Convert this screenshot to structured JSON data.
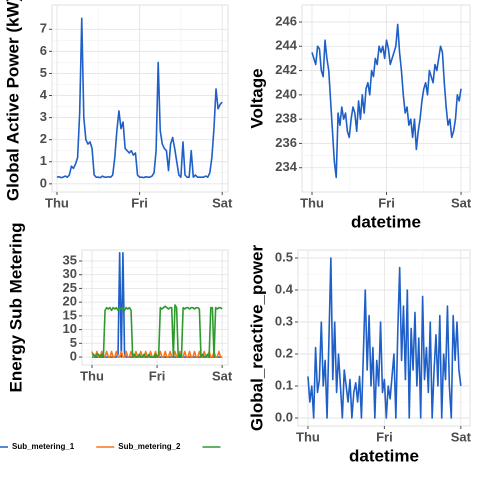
{
  "chart_data": [
    {
      "type": "line",
      "ylabel": "Global Active Power (kW)",
      "color": "#1f5fc8",
      "grid": true,
      "xlim": [
        -0.06,
        2.07
      ],
      "ylim": [
        -0.37,
        8.1
      ],
      "xticks": [
        {
          "value": 0,
          "label": "Thu"
        },
        {
          "value": 1,
          "label": "Fri"
        },
        {
          "value": 2,
          "label": "Sat"
        }
      ],
      "yticks": [
        0,
        1,
        2,
        3,
        4,
        5,
        6,
        7
      ],
      "x": [
        0,
        0.025,
        0.05,
        0.075,
        0.1,
        0.125,
        0.15,
        0.175,
        0.2,
        0.225,
        0.25,
        0.275,
        0.3,
        0.325,
        0.35,
        0.375,
        0.4,
        0.425,
        0.45,
        0.475,
        0.5,
        0.525,
        0.55,
        0.575,
        0.6,
        0.625,
        0.65,
        0.675,
        0.7,
        0.725,
        0.75,
        0.775,
        0.8,
        0.825,
        0.85,
        0.875,
        0.9,
        0.925,
        0.95,
        0.975,
        1,
        1.025,
        1.05,
        1.075,
        1.1,
        1.125,
        1.15,
        1.175,
        1.2,
        1.225,
        1.25,
        1.275,
        1.3,
        1.325,
        1.35,
        1.375,
        1.4,
        1.425,
        1.45,
        1.475,
        1.5,
        1.525,
        1.55,
        1.575,
        1.6,
        1.625,
        1.65,
        1.675,
        1.7,
        1.725,
        1.75,
        1.775,
        1.8,
        1.825,
        1.85,
        1.875,
        1.9,
        1.925,
        1.95,
        1.975,
        2
      ],
      "values": [
        0.3,
        0.32,
        0.28,
        0.3,
        0.35,
        0.3,
        0.4,
        0.8,
        0.7,
        0.9,
        1.2,
        3.2,
        7.5,
        3.0,
        2.0,
        1.8,
        1.9,
        1.6,
        0.4,
        0.3,
        0.3,
        0.28,
        0.35,
        0.3,
        0.3,
        0.32,
        0.3,
        0.4,
        1.2,
        2.4,
        3.3,
        2.5,
        2.8,
        1.6,
        1.5,
        1.4,
        1.5,
        1.3,
        1.4,
        0.4,
        0.3,
        0.3,
        0.28,
        0.32,
        0.3,
        0.3,
        0.35,
        0.5,
        1.5,
        5.5,
        2.4,
        1.8,
        1.6,
        1.5,
        0.6,
        1.8,
        2.1,
        1.6,
        1.0,
        0.4,
        0.3,
        1.9,
        0.4,
        0.3,
        0.3,
        1.5,
        0.3,
        0.4,
        0.3,
        0.3,
        0.3,
        0.3,
        0.35,
        0.3,
        0.5,
        1.2,
        2.5,
        4.3,
        3.4,
        3.6,
        3.7
      ]
    },
    {
      "type": "line",
      "xlabel": "datetime",
      "ylabel": "Voltage",
      "color": "#1f5fc8",
      "grid": true,
      "xlim": [
        -0.134,
        2.12
      ],
      "ylim": [
        232.0,
        247.4
      ],
      "xticks": [
        {
          "value": 0,
          "label": "Thu"
        },
        {
          "value": 1,
          "label": "Fri"
        },
        {
          "value": 2,
          "label": "Sat"
        }
      ],
      "yticks": [
        234,
        236,
        238,
        240,
        242,
        244,
        246
      ],
      "x": [
        0,
        0.025,
        0.05,
        0.075,
        0.1,
        0.125,
        0.15,
        0.175,
        0.2,
        0.225,
        0.25,
        0.275,
        0.3,
        0.325,
        0.35,
        0.375,
        0.4,
        0.425,
        0.45,
        0.475,
        0.5,
        0.525,
        0.55,
        0.575,
        0.6,
        0.625,
        0.65,
        0.675,
        0.7,
        0.725,
        0.75,
        0.775,
        0.8,
        0.825,
        0.85,
        0.875,
        0.9,
        0.925,
        0.95,
        0.975,
        1,
        1.025,
        1.05,
        1.075,
        1.1,
        1.125,
        1.15,
        1.175,
        1.2,
        1.225,
        1.25,
        1.275,
        1.3,
        1.325,
        1.35,
        1.375,
        1.4,
        1.425,
        1.45,
        1.475,
        1.5,
        1.525,
        1.55,
        1.575,
        1.6,
        1.625,
        1.65,
        1.675,
        1.7,
        1.725,
        1.75,
        1.775,
        1.8,
        1.825,
        1.85,
        1.875,
        1.9,
        1.925,
        1.95,
        1.975,
        2
      ],
      "values": [
        243.5,
        243,
        242.5,
        244,
        243.8,
        242,
        241.5,
        244.5,
        243,
        242,
        239.5,
        237,
        234.5,
        233.2,
        238.5,
        237.5,
        239,
        238,
        238.5,
        237,
        236.5,
        238,
        239,
        238.5,
        237,
        239.5,
        238,
        240,
        238.5,
        240.5,
        241,
        240,
        242,
        241.5,
        243,
        242.5,
        244,
        243.5,
        244,
        243,
        244.5,
        243.8,
        242.5,
        243,
        243.5,
        244,
        245.8,
        243.5,
        242,
        240,
        238.5,
        239,
        237.5,
        238,
        236.5,
        238,
        235.5,
        237,
        238,
        239.5,
        240.5,
        241,
        240,
        242,
        241.5,
        241,
        242.5,
        242,
        243,
        244,
        243.5,
        241,
        239,
        237.5,
        238,
        236.5,
        237,
        238,
        240,
        239.5,
        240.5
      ]
    },
    {
      "type": "line",
      "ylabel": "Energy Sub Metering",
      "grid": true,
      "legend": "bottom",
      "xlim": [
        -0.154,
        2.09
      ],
      "ylim": [
        -2.9,
        39
      ],
      "xticks": [
        {
          "value": 0,
          "label": "Thu"
        },
        {
          "value": 1,
          "label": "Fri"
        },
        {
          "value": 2,
          "label": "Sat"
        }
      ],
      "yticks": [
        0,
        5,
        10,
        15,
        20,
        25,
        30,
        35
      ],
      "x": [
        0,
        0.025,
        0.05,
        0.075,
        0.1,
        0.125,
        0.15,
        0.175,
        0.2,
        0.225,
        0.25,
        0.275,
        0.3,
        0.325,
        0.35,
        0.375,
        0.4,
        0.425,
        0.45,
        0.475,
        0.5,
        0.525,
        0.55,
        0.575,
        0.6,
        0.625,
        0.65,
        0.675,
        0.7,
        0.725,
        0.75,
        0.775,
        0.8,
        0.825,
        0.85,
        0.875,
        0.9,
        0.925,
        0.95,
        0.975,
        1,
        1.025,
        1.05,
        1.075,
        1.1,
        1.125,
        1.15,
        1.175,
        1.2,
        1.225,
        1.25,
        1.275,
        1.3,
        1.325,
        1.35,
        1.375,
        1.4,
        1.425,
        1.45,
        1.475,
        1.5,
        1.525,
        1.55,
        1.575,
        1.6,
        1.625,
        1.65,
        1.675,
        1.7,
        1.725,
        1.75,
        1.775,
        1.8,
        1.825,
        1.85,
        1.875,
        1.9,
        1.925,
        1.95,
        1.975,
        2
      ],
      "series": [
        {
          "name": "Sub_metering_1",
          "color": "#1f5fc8",
          "values": [
            0,
            0,
            0,
            0,
            0,
            0,
            0,
            0,
            0,
            0,
            0,
            0,
            0,
            0,
            0,
            0,
            1,
            38,
            0,
            38,
            1,
            0,
            0,
            0,
            0,
            0,
            0,
            0,
            0,
            0,
            0,
            0,
            0,
            0,
            0,
            0,
            0,
            0,
            0,
            0,
            0,
            0,
            0,
            0,
            0,
            0,
            0,
            0,
            0,
            0,
            0,
            0,
            0,
            0,
            0,
            0,
            0,
            0,
            0,
            0,
            0,
            0,
            0,
            0,
            0,
            0,
            0,
            0,
            0,
            0,
            0,
            0,
            0,
            0,
            0,
            0,
            0,
            0,
            0,
            0,
            0
          ]
        },
        {
          "name": "Sub_metering_2",
          "color": "#f5761a",
          "values": [
            2,
            0,
            0,
            2,
            0,
            0,
            2,
            0,
            0,
            2,
            0,
            0,
            2,
            0,
            0,
            2,
            0,
            0,
            2,
            0,
            0,
            2,
            0,
            0,
            2,
            0,
            0,
            2,
            0,
            0,
            2,
            0,
            0,
            2,
            0,
            0,
            2,
            0,
            0,
            2,
            0,
            0,
            2,
            0,
            0,
            2,
            0,
            0,
            2,
            0,
            0,
            2,
            0,
            0,
            2,
            0,
            0,
            2,
            0,
            0,
            2,
            0,
            0,
            2,
            0,
            0,
            2,
            0,
            0,
            2,
            0,
            0,
            2,
            0,
            0,
            2,
            0,
            0,
            2,
            0,
            0
          ]
        },
        {
          "color": "#2e9a2e",
          "values": [
            1,
            1,
            0,
            1,
            1,
            0,
            1,
            0,
            17,
            18,
            17.5,
            18,
            17,
            18,
            17.5,
            18,
            17,
            18,
            17.5,
            18,
            17,
            18,
            17.5,
            18,
            17,
            0,
            1,
            0,
            0,
            1,
            0,
            0,
            1,
            0,
            0,
            1,
            0,
            0,
            0,
            1,
            0,
            1,
            18,
            17.5,
            18,
            18.5,
            18,
            17.5,
            18,
            18,
            0,
            19,
            18,
            0,
            1,
            0,
            18,
            17.5,
            18,
            18,
            17.5,
            18,
            18,
            17.5,
            18,
            18,
            17.5,
            0,
            1,
            0,
            0,
            1,
            0,
            18,
            18,
            0,
            18,
            17.5,
            18,
            18,
            17.5
          ]
        }
      ]
    },
    {
      "type": "line",
      "xlabel": "datetime",
      "ylabel": "Global_reactive_power",
      "color": "#1f5fc8",
      "grid": true,
      "xlim": [
        -0.13,
        2.12
      ],
      "ylim": [
        -0.025,
        0.525
      ],
      "xticks": [
        {
          "value": 0,
          "label": "Thu"
        },
        {
          "value": 1,
          "label": "Fri"
        },
        {
          "value": 2,
          "label": "Sat"
        }
      ],
      "yticks": [
        {
          "value": 0,
          "label": "0.0"
        },
        0.1,
        0.2,
        0.3,
        0.4,
        0.5
      ],
      "x": [
        0,
        0.025,
        0.05,
        0.075,
        0.1,
        0.125,
        0.15,
        0.175,
        0.2,
        0.225,
        0.25,
        0.275,
        0.3,
        0.325,
        0.35,
        0.375,
        0.4,
        0.425,
        0.45,
        0.475,
        0.5,
        0.525,
        0.55,
        0.575,
        0.6,
        0.625,
        0.65,
        0.675,
        0.7,
        0.725,
        0.75,
        0.775,
        0.8,
        0.825,
        0.85,
        0.875,
        0.9,
        0.925,
        0.95,
        0.975,
        1,
        1.025,
        1.05,
        1.075,
        1.1,
        1.125,
        1.15,
        1.175,
        1.2,
        1.225,
        1.25,
        1.275,
        1.3,
        1.325,
        1.35,
        1.375,
        1.4,
        1.425,
        1.45,
        1.475,
        1.5,
        1.525,
        1.55,
        1.575,
        1.6,
        1.625,
        1.65,
        1.675,
        1.7,
        1.725,
        1.75,
        1.775,
        1.8,
        1.825,
        1.85,
        1.875,
        1.9,
        1.925,
        1.95,
        1.975,
        2
      ],
      "values": [
        0.13,
        0.05,
        0.1,
        0.0,
        0.22,
        0.08,
        0.12,
        0.3,
        0.1,
        0.18,
        0.0,
        0.25,
        0.5,
        0.12,
        0.3,
        0.08,
        0.2,
        0.1,
        0.0,
        0.15,
        0.1,
        0.05,
        0.12,
        0.0,
        0.08,
        0.11,
        0.05,
        0.13,
        0.0,
        0.2,
        0.4,
        0.15,
        0.32,
        0.1,
        0.22,
        0.0,
        0.18,
        0.1,
        0.3,
        0.08,
        0.12,
        0.0,
        0.1,
        0.06,
        0.13,
        0.2,
        0.0,
        0.27,
        0.47,
        0.18,
        0.35,
        0.12,
        0.4,
        0.0,
        0.28,
        0.15,
        0.33,
        0.1,
        0.25,
        0.0,
        0.38,
        0.12,
        0.22,
        0.08,
        0.3,
        0.0,
        0.15,
        0.26,
        0.1,
        0.32,
        0.0,
        0.2,
        0.12,
        0.35,
        0.1,
        0.0,
        0.32,
        0.18,
        0.3,
        0.15,
        0.1
      ]
    }
  ]
}
